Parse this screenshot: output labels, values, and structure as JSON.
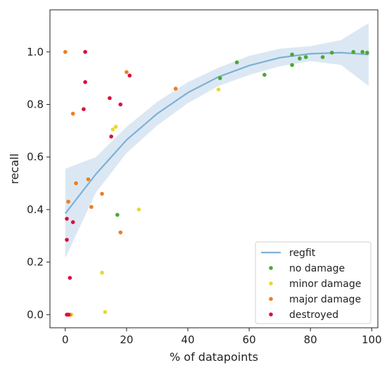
{
  "chart_data": {
    "type": "scatter",
    "title": "",
    "xlabel": "% of datapoints",
    "ylabel": "recall",
    "xlim": [
      -5,
      102
    ],
    "ylim": [
      -0.05,
      1.16
    ],
    "xticks": [
      0,
      20,
      40,
      60,
      80,
      100
    ],
    "yticks": [
      0.0,
      0.2,
      0.4,
      0.6,
      0.8,
      1.0
    ],
    "xtick_labels": [
      "0",
      "20",
      "40",
      "60",
      "80",
      "100"
    ],
    "ytick_labels": [
      "0.0",
      "0.2",
      "0.4",
      "0.6",
      "0.8",
      "1.0"
    ],
    "grid": false,
    "legend_position": "bottom-right",
    "regfit": {
      "name": "regfit",
      "color": "#7fb0d5",
      "band_color": "#dbe8f4",
      "x": [
        0,
        10,
        20,
        30,
        40,
        50,
        60,
        70,
        80,
        90,
        99
      ],
      "y": [
        0.385,
        0.535,
        0.665,
        0.765,
        0.845,
        0.905,
        0.948,
        0.978,
        0.993,
        0.997,
        0.99
      ],
      "lower": [
        0.215,
        0.465,
        0.615,
        0.72,
        0.805,
        0.87,
        0.912,
        0.945,
        0.965,
        0.95,
        0.87
      ],
      "upper": [
        0.555,
        0.6,
        0.715,
        0.81,
        0.885,
        0.94,
        0.985,
        1.012,
        1.022,
        1.045,
        1.11
      ]
    },
    "series": [
      {
        "name": "no damage",
        "color": "#4aa832",
        "points": [
          [
            17,
            0.38
          ],
          [
            50.5,
            0.9
          ],
          [
            56,
            0.96
          ],
          [
            65,
            0.913
          ],
          [
            74,
            0.99
          ],
          [
            74,
            0.95
          ],
          [
            76.5,
            0.975
          ],
          [
            78.5,
            0.98
          ],
          [
            84,
            0.98
          ],
          [
            87,
            0.997
          ],
          [
            94,
            1.0
          ],
          [
            97,
            1.0
          ],
          [
            98.5,
            0.997
          ]
        ]
      },
      {
        "name": "minor damage",
        "color": "#ead833",
        "points": [
          [
            2,
            0.0
          ],
          [
            12,
            0.16
          ],
          [
            13,
            0.01
          ],
          [
            15.5,
            0.705
          ],
          [
            16.5,
            0.715
          ],
          [
            24,
            0.4
          ],
          [
            50,
            0.857
          ]
        ]
      },
      {
        "name": "major damage",
        "color": "#f07d1f",
        "points": [
          [
            0,
            1.0
          ],
          [
            1,
            0.43
          ],
          [
            1.5,
            0.0
          ],
          [
            2.5,
            0.765
          ],
          [
            3.5,
            0.5
          ],
          [
            7.5,
            0.515
          ],
          [
            8.5,
            0.41
          ],
          [
            12,
            0.46
          ],
          [
            18,
            0.313
          ],
          [
            20,
            0.923
          ],
          [
            36,
            0.86
          ]
        ]
      },
      {
        "name": "destroyed",
        "color": "#d8103c",
        "points": [
          [
            0.5,
            0.0
          ],
          [
            0.5,
            0.365
          ],
          [
            0.5,
            0.285
          ],
          [
            1.5,
            0.14
          ],
          [
            2.5,
            0.352
          ],
          [
            6,
            0.782
          ],
          [
            6.5,
            1.0
          ],
          [
            6.5,
            0.885
          ],
          [
            14.5,
            0.824
          ],
          [
            15,
            0.678
          ],
          [
            18,
            0.8
          ],
          [
            21,
            0.91
          ],
          [
            1,
            0.0
          ]
        ]
      }
    ]
  }
}
